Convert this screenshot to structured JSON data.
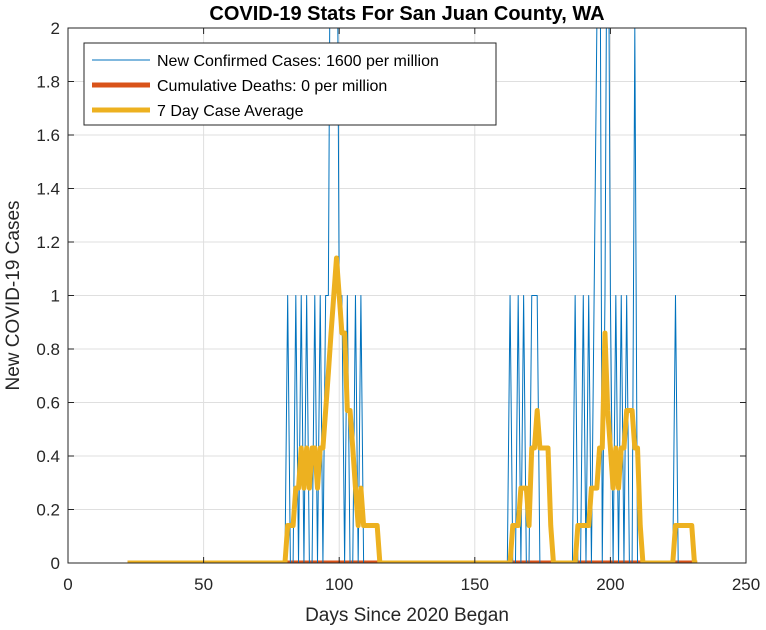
{
  "chart_data": {
    "type": "line",
    "title": "COVID-19 Stats For San Juan County, WA",
    "xlabel": "Days Since 2020 Began",
    "ylabel": "New COVID-19 Cases",
    "xlim": [
      0,
      250
    ],
    "ylim": [
      0,
      2
    ],
    "xticks": [
      0,
      50,
      100,
      150,
      200,
      250
    ],
    "yticks": [
      0,
      0.2,
      0.4,
      0.6,
      0.8,
      1,
      1.2,
      1.4,
      1.6,
      1.8,
      2
    ],
    "ytick_labels": [
      "0",
      "0.2",
      "0.4",
      "0.6",
      "0.8",
      "1",
      "1.2",
      "1.4",
      "1.6",
      "1.8",
      "2"
    ],
    "grid": true,
    "legend_location": "top-left",
    "series": [
      {
        "name": "New Confirmed Cases: 1600 per million",
        "color": "#0072bd",
        "style": "thin",
        "x": [
          22,
          80,
          81,
          82,
          83,
          84,
          85,
          86,
          87,
          88,
          89,
          90,
          91,
          92,
          93,
          94,
          95,
          96,
          97,
          98,
          99,
          100,
          101,
          102,
          103,
          104,
          105,
          106,
          107,
          108,
          109,
          110,
          111,
          112,
          113,
          114,
          115,
          120,
          160,
          162,
          163,
          164,
          165,
          166,
          167,
          168,
          169,
          170,
          171,
          172,
          173,
          174,
          175,
          176,
          177,
          178,
          185,
          186,
          187,
          188,
          189,
          190,
          191,
          192,
          193,
          194,
          195,
          196,
          197,
          198,
          199,
          200,
          201,
          202,
          203,
          204,
          205,
          206,
          207,
          208,
          209,
          210,
          211,
          212,
          213,
          214,
          215,
          220,
          222,
          223,
          224,
          225,
          226,
          230,
          232
        ],
        "y": [
          0,
          0,
          1,
          0,
          0,
          1,
          0,
          1,
          0,
          1,
          0,
          0,
          1,
          0,
          1,
          0,
          1,
          1,
          3,
          2,
          3,
          1,
          1,
          0,
          1,
          0,
          0,
          1,
          0,
          1,
          0,
          0,
          0,
          0,
          0,
          0,
          0,
          0,
          0,
          0,
          1,
          0,
          0,
          1,
          0,
          1,
          0,
          0,
          1,
          1,
          1,
          0,
          0,
          0,
          0,
          0,
          0,
          0,
          1,
          0,
          0,
          1,
          0,
          1,
          0,
          1,
          2,
          3,
          0,
          1,
          3,
          1,
          0,
          1,
          0,
          1,
          0,
          1,
          0,
          0,
          2,
          0,
          0,
          0,
          0,
          0,
          0,
          0,
          0,
          0,
          1,
          0,
          0,
          0,
          0
        ]
      },
      {
        "name": "Cumulative Deaths: 0 per million",
        "color": "#d95319",
        "style": "thick",
        "x": [
          22,
          232
        ],
        "y": [
          0,
          0
        ]
      },
      {
        "name": "7 Day Case Average",
        "color": "#edb120",
        "style": "thick",
        "x": [
          22,
          80,
          81,
          82,
          83,
          84,
          85,
          86,
          87,
          88,
          89,
          90,
          91,
          92,
          93,
          94,
          95,
          96,
          97,
          98,
          99,
          100,
          101,
          102,
          103,
          104,
          105,
          106,
          107,
          108,
          109,
          110,
          111,
          112,
          113,
          114,
          115,
          116,
          160,
          163,
          164,
          165,
          166,
          167,
          168,
          169,
          170,
          171,
          172,
          173,
          174,
          175,
          176,
          177,
          178,
          179,
          180,
          187,
          188,
          189,
          190,
          191,
          192,
          193,
          194,
          195,
          196,
          197,
          198,
          199,
          200,
          201,
          202,
          203,
          204,
          205,
          206,
          207,
          208,
          209,
          210,
          211,
          212,
          213,
          214,
          220,
          223,
          224,
          225,
          226,
          227,
          228,
          229,
          230,
          231,
          232
        ],
        "y": [
          0,
          0,
          0.14,
          0.14,
          0.14,
          0.28,
          0.28,
          0.43,
          0.28,
          0.43,
          0.28,
          0.43,
          0.43,
          0.28,
          0.43,
          0.43,
          0.57,
          0.71,
          0.86,
          1.0,
          1.14,
          1.0,
          0.86,
          0.86,
          0.57,
          0.57,
          0.43,
          0.28,
          0.14,
          0.28,
          0.14,
          0.14,
          0.14,
          0.14,
          0.14,
          0.14,
          0.0,
          0.0,
          0,
          0,
          0.14,
          0.14,
          0.14,
          0.28,
          0.28,
          0.28,
          0.14,
          0.43,
          0.43,
          0.57,
          0.43,
          0.43,
          0.43,
          0.43,
          0.14,
          0.0,
          0.0,
          0.0,
          0.14,
          0.14,
          0.14,
          0.14,
          0.14,
          0.28,
          0.28,
          0.28,
          0.43,
          0.43,
          0.86,
          0.57,
          0.43,
          0.28,
          0.43,
          0.28,
          0.43,
          0.43,
          0.57,
          0.57,
          0.57,
          0.43,
          0.43,
          0.14,
          0.0,
          0.0,
          0.0,
          0.0,
          0.0,
          0.14,
          0.14,
          0.14,
          0.14,
          0.14,
          0.14,
          0.14,
          0.0,
          0.0
        ]
      }
    ]
  }
}
